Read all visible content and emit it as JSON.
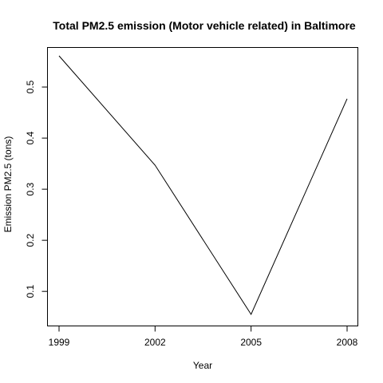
{
  "chart_data": {
    "type": "line",
    "title": "Total PM2.5 emission (Motor vehicle related) in Baltimore",
    "xlabel": "Year",
    "ylabel": "Emission PM2.5 (tons)",
    "x": [
      1999,
      2002,
      2005,
      2008
    ],
    "x_tick_labels": [
      "1999",
      "2002",
      "2005",
      "2008"
    ],
    "y_ticks": [
      0.1,
      0.2,
      0.3,
      0.4,
      0.5
    ],
    "y_tick_labels": [
      "0.1",
      "0.2",
      "0.3",
      "0.4",
      "0.5"
    ],
    "series": [
      {
        "values": [
          0.561,
          0.347,
          0.055,
          0.477
        ],
        "color": "#000000"
      }
    ],
    "xlim": [
      1999,
      2008
    ],
    "ylim": [
      0.055,
      0.561
    ],
    "grid": false,
    "legend": "none"
  }
}
